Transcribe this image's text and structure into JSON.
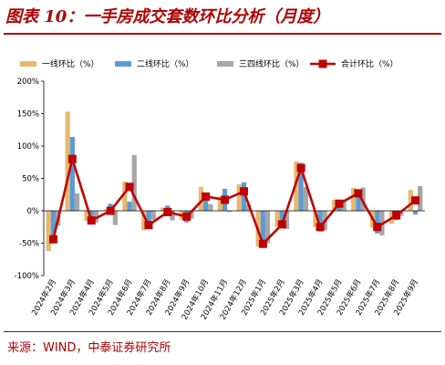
{
  "title": "图表 10：一手房成交套数环比分析（月度）",
  "source": "来源：WIND，中泰证券研究所",
  "colors": {
    "tier1": "#e5b96f",
    "tier2": "#5b9bd5",
    "tier34": "#a6a6a6",
    "total": "#c00000",
    "accent": "#b00000"
  },
  "chart_data": {
    "type": "bar",
    "legend_position": "top",
    "grid": false,
    "ylim": [
      -100,
      200
    ],
    "yticks": [
      -100,
      -50,
      0,
      50,
      100,
      150,
      200
    ],
    "ytick_labels": [
      "-100%",
      "-50%",
      "0%",
      "50%",
      "100%",
      "150%",
      "200%"
    ],
    "categories": [
      "2024年2月",
      "2024年3月",
      "2024年4月",
      "2024年5月",
      "2024年6月",
      "2024年7月",
      "2024年8月",
      "2024年9月",
      "2024年10月",
      "2024年11月",
      "2024年12月",
      "2025年1月",
      "2025年2月",
      "2025年3月",
      "2025年4月",
      "2025年5月",
      "2025年6月",
      "2025年7月",
      "2025年8月",
      "2025年9月"
    ],
    "series": [
      {
        "name": "一线环比（%）",
        "kind": "bar",
        "color": "#e5b96f",
        "values": [
          -62,
          153,
          -16,
          2,
          45,
          -30,
          5,
          -14,
          37,
          22,
          41,
          -55,
          -25,
          76,
          -25,
          17,
          35,
          -26,
          -20,
          32
        ]
      },
      {
        "name": "二线环比（%）",
        "kind": "bar",
        "color": "#5b9bd5",
        "values": [
          -48,
          114,
          -18,
          11,
          14,
          -22,
          8,
          -18,
          17,
          34,
          44,
          -56,
          -20,
          74,
          -32,
          6,
          32,
          -35,
          -14,
          -6
        ]
      },
      {
        "name": "三四线环比（%）",
        "kind": "bar",
        "color": "#a6a6a6",
        "values": [
          -23,
          27,
          -18,
          -22,
          86,
          -14,
          -15,
          -12,
          10,
          -2,
          10,
          -50,
          -28,
          37,
          -30,
          15,
          36,
          -38,
          -8,
          38
        ]
      },
      {
        "name": "合计环比（%）",
        "kind": "line",
        "color": "#c00000",
        "values": [
          -44,
          80,
          -15,
          0,
          37,
          -22,
          -2,
          -9,
          22,
          17,
          30,
          -51,
          -21,
          66,
          -25,
          11,
          27,
          -25,
          -7,
          16
        ]
      }
    ]
  }
}
